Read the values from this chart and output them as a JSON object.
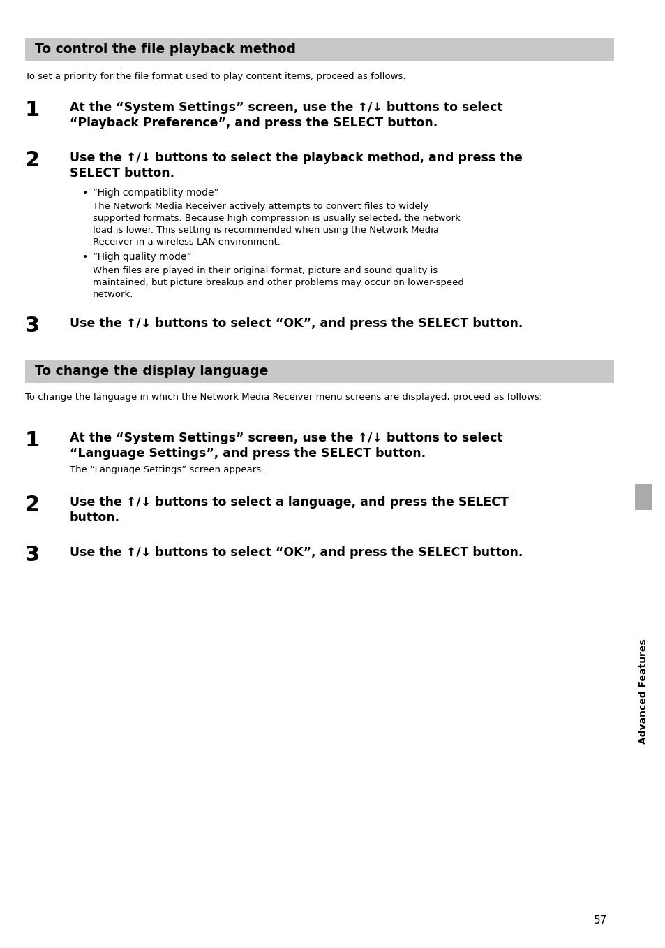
{
  "background_color": "#ffffff",
  "page_number": "57",
  "sidebar_text": "Advanced Features",
  "sidebar_color": "#b0b0b0",
  "sidebar_text_color": "#000000",
  "section1": {
    "header": "To control the file playback method",
    "header_bg": "#c8c8c8",
    "intro": "To set a priority for the file format used to play content items, proceed as follows.",
    "steps": [
      {
        "num": "1",
        "lines": [
          "At the “System Settings” screen, use the ↑/↓ buttons to select",
          "“Playback Preference”, and press the SELECT button."
        ]
      },
      {
        "num": "2",
        "lines": [
          "Use the ↑/↓ buttons to select the playback method, and press the",
          "SELECT button."
        ],
        "bullets": [
          {
            "title": "“High compatiblity mode”",
            "body": [
              "The Network Media Receiver actively attempts to convert files to widely",
              "supported formats. Because high compression is usually selected, the network",
              "load is lower. This setting is recommended when using the Network Media",
              "Receiver in a wireless LAN environment."
            ]
          },
          {
            "title": "“High quality mode”",
            "body": [
              "When files are played in their original format, picture and sound quality is",
              "maintained, but picture breakup and other problems may occur on lower-speed",
              "network."
            ]
          }
        ]
      },
      {
        "num": "3",
        "lines": [
          "Use the ↑/↓ buttons to select “OK”, and press the SELECT button."
        ]
      }
    ]
  },
  "section2": {
    "header": "To change the display language",
    "header_bg": "#c8c8c8",
    "intro": "To change the language in which the Network Media Receiver menu screens are displayed, proceed as follows:",
    "steps": [
      {
        "num": "1",
        "lines": [
          "At the “System Settings” screen, use the ↑/↓ buttons to select",
          "“Language Settings”, and press the SELECT button."
        ],
        "sub": "The “Language Settings” screen appears."
      },
      {
        "num": "2",
        "lines": [
          "Use the ↑/↓ buttons to select a language, and press the SELECT",
          "button."
        ]
      },
      {
        "num": "3",
        "lines": [
          "Use the ↑/↓ buttons to select “OK”, and press the SELECT button."
        ]
      }
    ]
  }
}
